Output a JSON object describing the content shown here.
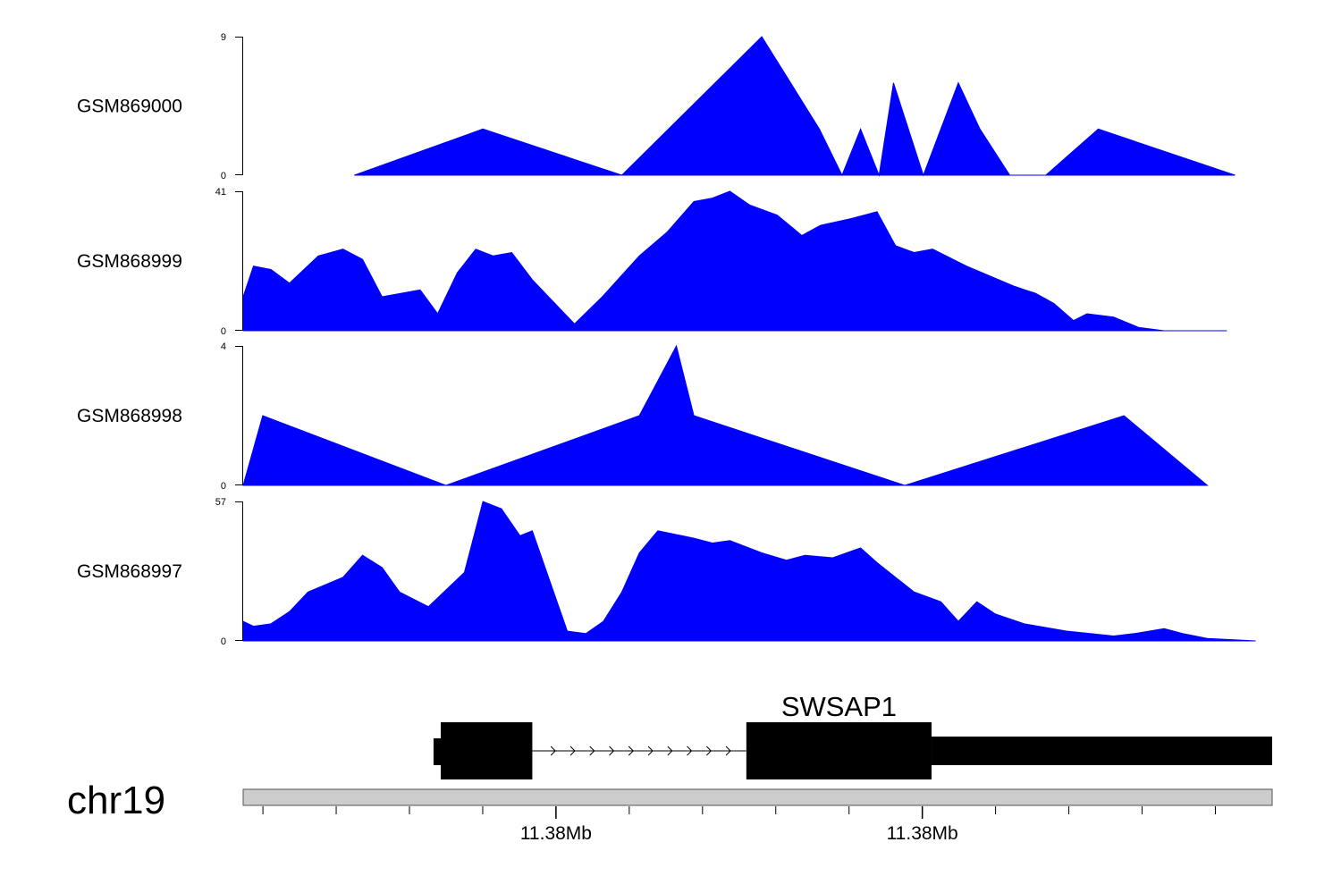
{
  "colors": {
    "signal": "#0000ff",
    "axis": "#000000",
    "ideogram": "#cccccc",
    "gene": "#000000"
  },
  "chart_data": {
    "type": "area",
    "xlim": [
      0,
      100
    ],
    "tracks": [
      {
        "name": "GSM869000",
        "ylim": [
          0,
          9
        ],
        "x": [
          10.8,
          23.3,
          36.8,
          50.4,
          56.0,
          58.2,
          60.0,
          61.8,
          63.2,
          66.1,
          67.8,
          69.5,
          71.6,
          74.5,
          78.0,
          83.1,
          96.4
        ],
        "y": [
          0,
          3,
          0,
          9,
          3,
          0,
          3,
          0,
          6,
          0,
          3,
          6,
          3,
          0,
          0,
          3,
          0
        ]
      },
      {
        "name": "GSM868999",
        "ylim": [
          0,
          41
        ],
        "x": [
          0,
          1.0,
          2.7,
          4.5,
          7.3,
          9.7,
          11.6,
          13.5,
          17.2,
          18.9,
          20.8,
          22.6,
          24.3,
          26.1,
          28.1,
          32.2,
          34.9,
          38.5,
          41.2,
          43.8,
          45.6,
          47.3,
          49.2,
          51.9,
          54.3,
          56.1,
          59.1,
          61.6,
          63.4,
          65.2,
          67.0,
          70.3,
          75.0,
          77.0,
          78.8,
          80.7,
          82.0,
          84.6,
          87.0,
          89.5,
          95.6
        ],
        "y": [
          10,
          19,
          18,
          14,
          22,
          24,
          21,
          10,
          12,
          5,
          17,
          24,
          22,
          23,
          15,
          2,
          10,
          22,
          29,
          38,
          39,
          41,
          37,
          34,
          28,
          31,
          33,
          35,
          25,
          23,
          24,
          19,
          13,
          11,
          8,
          3,
          5,
          4,
          1,
          0,
          0
        ]
      },
      {
        "name": "GSM868998",
        "ylim": [
          0,
          4
        ],
        "x": [
          0,
          1.9,
          19.7,
          38.5,
          42.1,
          43.8,
          64.3,
          85.6,
          93.7
        ],
        "y": [
          0,
          2,
          0,
          2,
          4,
          2,
          0,
          2,
          0
        ]
      },
      {
        "name": "GSM868997",
        "ylim": [
          0,
          57
        ],
        "x": [
          0,
          1.0,
          2.7,
          4.5,
          6.3,
          9.7,
          11.6,
          13.5,
          15.2,
          18.0,
          21.5,
          23.3,
          25.1,
          26.9,
          28.1,
          31.5,
          33.3,
          35.0,
          36.8,
          38.5,
          40.3,
          43.8,
          45.6,
          47.3,
          50.4,
          52.8,
          54.6,
          57.3,
          60.0,
          61.6,
          63.4,
          65.2,
          67.8,
          69.5,
          71.3,
          73.1,
          75.9,
          80.0,
          84.6,
          86.6,
          89.5,
          91.3,
          93.7,
          98.4
        ],
        "y": [
          8,
          6,
          7,
          12,
          20,
          26,
          35,
          30,
          20,
          14,
          28,
          57,
          54,
          43,
          45,
          4,
          3,
          8,
          20,
          36,
          45,
          42,
          40,
          41,
          36,
          33,
          35,
          34,
          38,
          32,
          26,
          20,
          16,
          8,
          16,
          11,
          7,
          4,
          2,
          3,
          5,
          3,
          1,
          0
        ]
      }
    ],
    "x_ticks": [
      {
        "pos": 30.4,
        "label": "11.38Mb"
      },
      {
        "pos": 66.0,
        "label": "11.38Mb"
      }
    ],
    "chromosome": "chr19",
    "gene": {
      "name": "SWSAP1",
      "exons": [
        [
          18.5,
          19.2
        ],
        [
          19.2,
          28.1
        ],
        [
          48.9,
          66.9
        ],
        [
          66.9,
          100
        ]
      ],
      "intron": [
        28.1,
        48.9
      ]
    }
  }
}
